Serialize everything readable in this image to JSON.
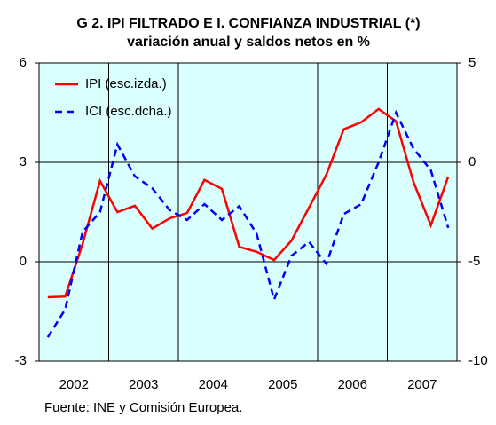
{
  "chart_data": {
    "type": "line",
    "title": "G 2. IPI FILTRADO E I. CONFIANZA INDUSTRIAL (*)",
    "subtitle": "variación anual y saldos netos en %",
    "source": "Fuente: INE y Comisión Europea.",
    "x": [
      2002.125,
      2002.375,
      2002.625,
      2002.875,
      2003.125,
      2003.375,
      2003.625,
      2003.875,
      2004.125,
      2004.375,
      2004.625,
      2004.875,
      2005.125,
      2005.375,
      2005.625,
      2005.875,
      2006.125,
      2006.375,
      2006.625,
      2006.875,
      2007.125,
      2007.375,
      2007.625,
      2007.875
    ],
    "xlim": [
      2002,
      2008
    ],
    "xticks": [
      {
        "value": 2002.5,
        "label": "2002"
      },
      {
        "value": 2003.5,
        "label": "2003"
      },
      {
        "value": 2004.5,
        "label": "2004"
      },
      {
        "value": 2005.5,
        "label": "2005"
      },
      {
        "value": 2006.5,
        "label": "2006"
      },
      {
        "value": 2007.5,
        "label": "2007"
      }
    ],
    "ylim": [
      -3,
      6
    ],
    "yticks": [
      -3,
      0,
      3,
      6
    ],
    "y2lim": [
      -10,
      5
    ],
    "y2ticks": [
      -10,
      -5,
      0,
      5
    ],
    "grid": true,
    "legend": "upper left",
    "series": [
      {
        "name": "IPI (esc.izda.)",
        "color": "#ff0000",
        "dash": "solid",
        "axis": "y",
        "values": [
          -1.07,
          -1.05,
          0.54,
          2.44,
          1.5,
          1.69,
          1.0,
          1.31,
          1.47,
          2.47,
          2.2,
          0.45,
          0.3,
          0.05,
          0.64,
          1.63,
          2.63,
          4.0,
          4.21,
          4.61,
          4.24,
          2.41,
          1.1,
          2.57
        ]
      },
      {
        "name": "ICI (esc.dcha.)",
        "color": "#0000ff",
        "dash": "dashed",
        "axis": "y2",
        "values": [
          -8.8,
          -7.4,
          -3.5,
          -2.5,
          0.9,
          -0.7,
          -1.3,
          -2.4,
          -2.9,
          -2.1,
          -2.9,
          -2.2,
          -3.6,
          -6.9,
          -4.7,
          -4.0,
          -5.1,
          -2.6,
          -2.1,
          0,
          2.5,
          0.7,
          -0.4,
          -3.3
        ]
      }
    ]
  }
}
